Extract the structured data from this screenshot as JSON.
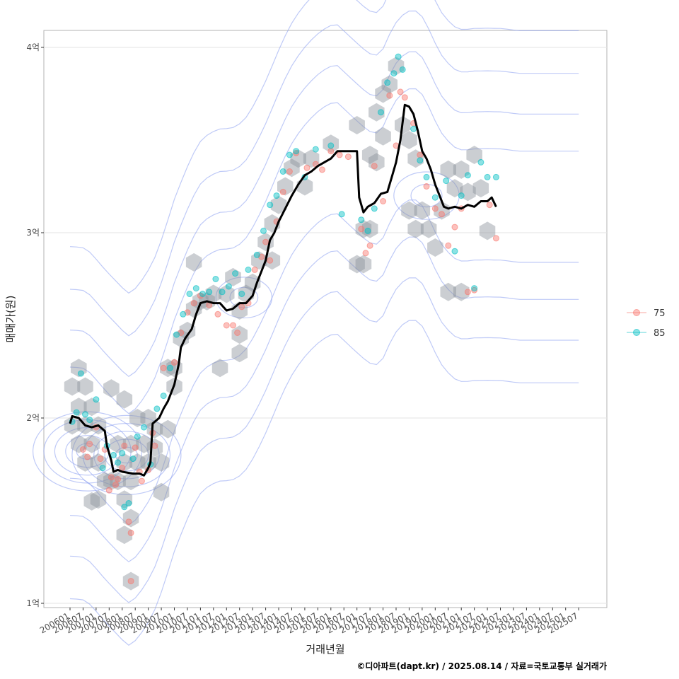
{
  "chart_data": {
    "type": "scatter",
    "xlabel": "거래년월",
    "ylabel": "매매가(원)",
    "y_unit": "억",
    "ylim": [
      0.95,
      4.1
    ],
    "y_ticks": [
      1,
      2,
      3,
      4
    ],
    "y_tick_labels": [
      "1억",
      "2억",
      "3억",
      "4억"
    ],
    "x_range": [
      "2006-01",
      "2025-12"
    ],
    "x_tick_labels": [
      "200601",
      "200607",
      "200701",
      "200707",
      "200801",
      "200807",
      "200901",
      "200907",
      "201001",
      "201007",
      "201101",
      "201107",
      "201201",
      "201207",
      "201301",
      "201307",
      "201401",
      "201407",
      "201501",
      "201507",
      "201601",
      "201607",
      "201701",
      "201707",
      "201801",
      "201807",
      "201901",
      "201907",
      "202001",
      "202007",
      "202101",
      "202107",
      "202201",
      "202207",
      "202301",
      "202307",
      "202401",
      "202407",
      "202501",
      "202507"
    ],
    "grid": true,
    "legend_position": "right",
    "legend": [
      {
        "name": "75",
        "color": "#F8766D"
      },
      {
        "name": "85",
        "color": "#00BFC4"
      }
    ],
    "moving_average": {
      "color": "#000000",
      "points": [
        [
          "2006-01",
          1.97
        ],
        [
          "2006-02",
          2.01
        ],
        [
          "2006-05",
          2.0
        ],
        [
          "2006-08",
          1.96
        ],
        [
          "2006-11",
          1.95
        ],
        [
          "2007-02",
          1.96
        ],
        [
          "2007-05",
          1.93
        ],
        [
          "2007-06",
          1.85
        ],
        [
          "2007-08",
          1.77
        ],
        [
          "2007-09",
          1.71
        ],
        [
          "2007-11",
          1.72
        ],
        [
          "2008-01",
          1.71
        ],
        [
          "2008-06",
          1.7
        ],
        [
          "2008-09",
          1.7
        ],
        [
          "2008-11",
          1.69
        ],
        [
          "2009-01",
          1.73
        ],
        [
          "2009-02",
          1.76
        ],
        [
          "2009-03",
          1.97
        ],
        [
          "2009-06",
          2.0
        ],
        [
          "2009-08",
          2.05
        ],
        [
          "2009-10",
          2.09
        ],
        [
          "2010-01",
          2.18
        ],
        [
          "2010-03",
          2.29
        ],
        [
          "2010-04",
          2.38
        ],
        [
          "2010-06",
          2.43
        ],
        [
          "2010-09",
          2.48
        ],
        [
          "2010-11",
          2.56
        ],
        [
          "2011-01",
          2.62
        ],
        [
          "2011-04",
          2.63
        ],
        [
          "2011-07",
          2.62
        ],
        [
          "2011-10",
          2.62
        ],
        [
          "2012-01",
          2.58
        ],
        [
          "2012-04",
          2.59
        ],
        [
          "2012-07",
          2.62
        ],
        [
          "2012-10",
          2.62
        ],
        [
          "2013-01",
          2.66
        ],
        [
          "2013-03",
          2.73
        ],
        [
          "2013-05",
          2.79
        ],
        [
          "2013-07",
          2.85
        ],
        [
          "2013-09",
          2.96
        ],
        [
          "2013-11",
          3.0
        ],
        [
          "2014-01",
          3.06
        ],
        [
          "2014-04",
          3.13
        ],
        [
          "2014-07",
          3.2
        ],
        [
          "2014-10",
          3.26
        ],
        [
          "2015-01",
          3.31
        ],
        [
          "2015-04",
          3.33
        ],
        [
          "2015-07",
          3.36
        ],
        [
          "2015-10",
          3.38
        ],
        [
          "2016-01",
          3.4
        ],
        [
          "2016-04",
          3.44
        ],
        [
          "2016-07",
          3.44
        ],
        [
          "2016-10",
          3.44
        ],
        [
          "2017-01",
          3.44
        ],
        [
          "2017-02",
          3.19
        ],
        [
          "2017-04",
          3.11
        ],
        [
          "2017-06",
          3.14
        ],
        [
          "2017-09",
          3.16
        ],
        [
          "2017-12",
          3.21
        ],
        [
          "2018-03",
          3.22
        ],
        [
          "2018-05",
          3.3
        ],
        [
          "2018-07",
          3.38
        ],
        [
          "2018-09",
          3.5
        ],
        [
          "2018-11",
          3.69
        ],
        [
          "2019-01",
          3.68
        ],
        [
          "2019-03",
          3.64
        ],
        [
          "2019-05",
          3.55
        ],
        [
          "2019-07",
          3.44
        ],
        [
          "2019-09",
          3.4
        ],
        [
          "2019-11",
          3.34
        ],
        [
          "2020-01",
          3.26
        ],
        [
          "2020-03",
          3.2
        ],
        [
          "2020-05",
          3.14
        ],
        [
          "2020-07",
          3.13
        ],
        [
          "2020-10",
          3.14
        ],
        [
          "2021-01",
          3.13
        ],
        [
          "2021-04",
          3.15
        ],
        [
          "2021-07",
          3.14
        ],
        [
          "2021-10",
          3.17
        ],
        [
          "2022-01",
          3.17
        ],
        [
          "2022-03",
          3.19
        ],
        [
          "2022-05",
          3.14
        ]
      ]
    },
    "series": [
      {
        "name": "75",
        "color": "#F8766D",
        "points": [
          [
            "2006-07",
            1.83
          ],
          [
            "2006-09",
            1.79
          ],
          [
            "2006-10",
            1.86
          ],
          [
            "2007-01",
            1.95
          ],
          [
            "2007-03",
            1.78
          ],
          [
            "2007-05",
            1.83
          ],
          [
            "2007-07",
            1.61
          ],
          [
            "2007-08",
            1.68
          ],
          [
            "2007-10",
            1.64
          ],
          [
            "2007-11",
            1.67
          ],
          [
            "2008-01",
            1.73
          ],
          [
            "2008-02",
            1.85
          ],
          [
            "2008-04",
            1.44
          ],
          [
            "2008-05",
            1.38
          ],
          [
            "2008-05",
            1.12
          ],
          [
            "2008-07",
            1.84
          ],
          [
            "2008-09",
            1.71
          ],
          [
            "2008-10",
            1.66
          ],
          [
            "2009-01",
            1.72
          ],
          [
            "2009-03",
            1.92
          ],
          [
            "2009-04",
            1.85
          ],
          [
            "2009-08",
            2.27
          ],
          [
            "2010-01",
            2.3
          ],
          [
            "2010-04",
            2.46
          ],
          [
            "2010-07",
            2.57
          ],
          [
            "2010-10",
            2.62
          ],
          [
            "2011-01",
            2.66
          ],
          [
            "2011-05",
            2.61
          ],
          [
            "2011-09",
            2.56
          ],
          [
            "2012-01",
            2.5
          ],
          [
            "2012-04",
            2.5
          ],
          [
            "2012-06",
            2.46
          ],
          [
            "2012-08",
            2.6
          ],
          [
            "2012-11",
            2.62
          ],
          [
            "2013-02",
            2.8
          ],
          [
            "2013-05",
            2.87
          ],
          [
            "2013-07",
            2.95
          ],
          [
            "2013-09",
            2.85
          ],
          [
            "2013-12",
            3.06
          ],
          [
            "2014-03",
            3.22
          ],
          [
            "2014-06",
            3.33
          ],
          [
            "2014-09",
            3.43
          ],
          [
            "2015-02",
            3.35
          ],
          [
            "2015-06",
            3.37
          ],
          [
            "2015-09",
            3.34
          ],
          [
            "2016-01",
            3.44
          ],
          [
            "2016-05",
            3.42
          ],
          [
            "2016-09",
            3.41
          ],
          [
            "2017-03",
            3.02
          ],
          [
            "2017-05",
            2.89
          ],
          [
            "2017-07",
            2.93
          ],
          [
            "2017-09",
            3.36
          ],
          [
            "2018-01",
            3.17
          ],
          [
            "2018-04",
            3.74
          ],
          [
            "2018-07",
            3.47
          ],
          [
            "2018-09",
            3.76
          ],
          [
            "2018-11",
            3.73
          ],
          [
            "2019-03",
            3.59
          ],
          [
            "2019-06",
            3.42
          ],
          [
            "2019-09",
            3.25
          ],
          [
            "2020-01",
            3.13
          ],
          [
            "2020-04",
            3.1
          ],
          [
            "2020-07",
            2.93
          ],
          [
            "2020-10",
            3.03
          ],
          [
            "2021-01",
            3.13
          ],
          [
            "2021-04",
            2.68
          ],
          [
            "2021-07",
            2.69
          ],
          [
            "2022-02",
            3.15
          ],
          [
            "2022-05",
            2.97
          ]
        ]
      },
      {
        "name": "85",
        "color": "#00BFC4",
        "points": [
          [
            "2006-02",
            1.98
          ],
          [
            "2006-04",
            2.03
          ],
          [
            "2006-06",
            2.24
          ],
          [
            "2006-08",
            2.02
          ],
          [
            "2006-10",
            1.99
          ],
          [
            "2007-01",
            2.1
          ],
          [
            "2007-04",
            1.73
          ],
          [
            "2007-06",
            1.85
          ],
          [
            "2007-09",
            1.8
          ],
          [
            "2007-11",
            1.76
          ],
          [
            "2008-01",
            1.81
          ],
          [
            "2008-02",
            1.52
          ],
          [
            "2008-04",
            1.54
          ],
          [
            "2008-06",
            1.78
          ],
          [
            "2008-08",
            1.9
          ],
          [
            "2008-11",
            1.95
          ],
          [
            "2009-02",
            1.75
          ],
          [
            "2009-05",
            2.05
          ],
          [
            "2009-08",
            2.12
          ],
          [
            "2009-11",
            2.27
          ],
          [
            "2010-02",
            2.45
          ],
          [
            "2010-05",
            2.56
          ],
          [
            "2010-08",
            2.67
          ],
          [
            "2010-11",
            2.7
          ],
          [
            "2011-02",
            2.67
          ],
          [
            "2011-05",
            2.68
          ],
          [
            "2011-08",
            2.75
          ],
          [
            "2011-11",
            2.68
          ],
          [
            "2012-02",
            2.71
          ],
          [
            "2012-05",
            2.78
          ],
          [
            "2012-08",
            2.67
          ],
          [
            "2012-11",
            2.8
          ],
          [
            "2013-03",
            2.88
          ],
          [
            "2013-06",
            3.01
          ],
          [
            "2013-09",
            3.15
          ],
          [
            "2013-12",
            3.2
          ],
          [
            "2014-03",
            3.33
          ],
          [
            "2014-06",
            3.42
          ],
          [
            "2014-09",
            3.44
          ],
          [
            "2015-01",
            3.3
          ],
          [
            "2015-06",
            3.45
          ],
          [
            "2016-01",
            3.47
          ],
          [
            "2016-06",
            3.1
          ],
          [
            "2017-03",
            3.07
          ],
          [
            "2017-06",
            3.01
          ],
          [
            "2017-09",
            3.13
          ],
          [
            "2017-12",
            3.65
          ],
          [
            "2018-03",
            3.81
          ],
          [
            "2018-06",
            3.86
          ],
          [
            "2018-08",
            3.95
          ],
          [
            "2018-10",
            3.88
          ],
          [
            "2019-03",
            3.56
          ],
          [
            "2019-06",
            3.39
          ],
          [
            "2019-09",
            3.3
          ],
          [
            "2020-01",
            3.19
          ],
          [
            "2020-06",
            3.28
          ],
          [
            "2020-10",
            2.9
          ],
          [
            "2021-01",
            3.2
          ],
          [
            "2021-04",
            3.31
          ],
          [
            "2021-07",
            2.7
          ],
          [
            "2021-10",
            3.38
          ],
          [
            "2022-01",
            3.3
          ],
          [
            "2022-05",
            3.3
          ]
        ]
      }
    ],
    "hexbins": [
      [
        "2006-05",
        2.27
      ],
      [
        "2006-02",
        2.17
      ],
      [
        "2006-08",
        2.17
      ],
      [
        "2006-05",
        2.06
      ],
      [
        "2006-11",
        2.06
      ],
      [
        "2006-02",
        1.96
      ],
      [
        "2006-08",
        1.96
      ],
      [
        "2007-02",
        1.96
      ],
      [
        "2006-05",
        1.86
      ],
      [
        "2006-11",
        1.86
      ],
      [
        "2006-08",
        1.76
      ],
      [
        "2007-02",
        1.76
      ],
      [
        "2007-05",
        1.66
      ],
      [
        "2007-08",
        1.66
      ],
      [
        "2007-02",
        1.56
      ],
      [
        "2006-11",
        1.55
      ],
      [
        "2007-08",
        2.16
      ],
      [
        "2008-02",
        2.1
      ],
      [
        "2008-08",
        2.0
      ],
      [
        "2007-11",
        1.86
      ],
      [
        "2008-05",
        1.86
      ],
      [
        "2008-11",
        1.86
      ],
      [
        "2008-02",
        1.76
      ],
      [
        "2008-08",
        1.76
      ],
      [
        "2007-11",
        1.66
      ],
      [
        "2008-05",
        1.66
      ],
      [
        "2008-02",
        1.56
      ],
      [
        "2008-05",
        1.46
      ],
      [
        "2008-02",
        1.37
      ],
      [
        "2008-05",
        1.12
      ],
      [
        "2009-01",
        2.0
      ],
      [
        "2009-04",
        1.94
      ],
      [
        "2009-10",
        1.94
      ],
      [
        "2009-01",
        1.76
      ],
      [
        "2009-04",
        1.84
      ],
      [
        "2009-07",
        1.76
      ],
      [
        "2009-07",
        1.6
      ],
      [
        "2009-10",
        2.27
      ],
      [
        "2010-01",
        2.27
      ],
      [
        "2010-01",
        2.17
      ],
      [
        "2010-04",
        2.43
      ],
      [
        "2010-07",
        2.47
      ],
      [
        "2010-10",
        2.59
      ],
      [
        "2011-01",
        2.63
      ],
      [
        "2011-04",
        2.63
      ],
      [
        "2011-07",
        2.67
      ],
      [
        "2010-10",
        2.84
      ],
      [
        "2011-10",
        2.27
      ],
      [
        "2012-01",
        2.67
      ],
      [
        "2012-04",
        2.76
      ],
      [
        "2012-07",
        2.58
      ],
      [
        "2012-10",
        2.67
      ],
      [
        "2012-07",
        2.45
      ],
      [
        "2012-07",
        2.35
      ],
      [
        "2013-01",
        2.73
      ],
      [
        "2013-04",
        2.85
      ],
      [
        "2013-07",
        2.95
      ],
      [
        "2013-10",
        3.05
      ],
      [
        "2013-10",
        2.85
      ],
      [
        "2014-01",
        3.15
      ],
      [
        "2014-04",
        3.25
      ],
      [
        "2014-07",
        3.35
      ],
      [
        "2014-10",
        3.4
      ],
      [
        "2015-01",
        3.25
      ],
      [
        "2015-04",
        3.4
      ],
      [
        "2016-01",
        3.48
      ],
      [
        "2017-01",
        3.58
      ],
      [
        "2017-04",
        3.02
      ],
      [
        "2017-01",
        2.83
      ],
      [
        "2017-04",
        2.83
      ],
      [
        "2017-07",
        3.02
      ],
      [
        "2017-07",
        3.42
      ],
      [
        "2017-10",
        3.38
      ],
      [
        "2017-10",
        3.65
      ],
      [
        "2018-01",
        3.52
      ],
      [
        "2018-01",
        3.75
      ],
      [
        "2018-04",
        3.8
      ],
      [
        "2018-07",
        3.9
      ],
      [
        "2018-10",
        3.58
      ],
      [
        "2019-01",
        3.5
      ],
      [
        "2019-04",
        3.4
      ],
      [
        "2019-01",
        3.12
      ],
      [
        "2019-04",
        3.02
      ],
      [
        "2019-07",
        3.12
      ],
      [
        "2019-10",
        3.02
      ],
      [
        "2020-01",
        2.92
      ],
      [
        "2020-04",
        3.12
      ],
      [
        "2020-07",
        3.34
      ],
      [
        "2020-10",
        3.24
      ],
      [
        "2021-01",
        3.34
      ],
      [
        "2021-04",
        3.22
      ],
      [
        "2021-07",
        3.42
      ],
      [
        "2021-10",
        3.24
      ],
      [
        "2022-01",
        3.01
      ],
      [
        "2020-07",
        2.68
      ],
      [
        "2021-01",
        2.68
      ]
    ],
    "density_contours": true
  },
  "caption": "©디아파트(dapt.kr) / 2025.08.14 / 자료=국토교통부 실거래가"
}
